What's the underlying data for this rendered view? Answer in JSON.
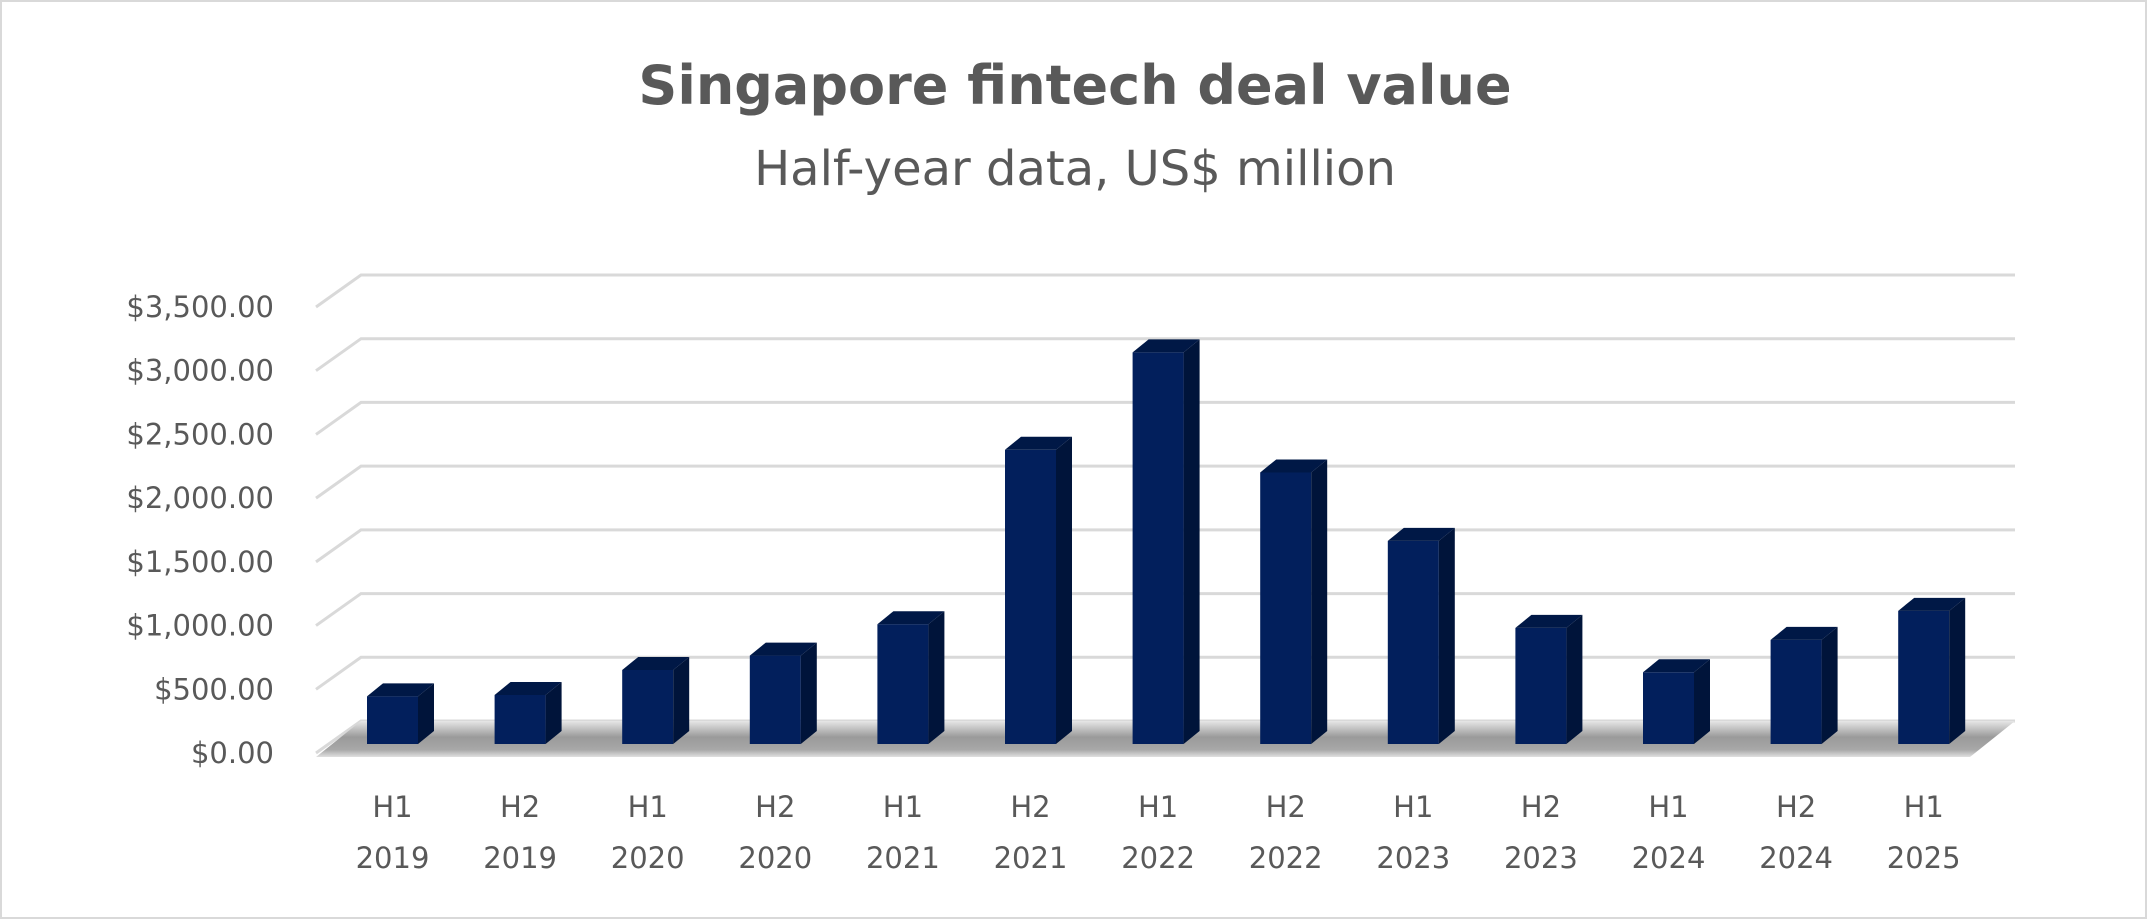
{
  "chart_data": {
    "type": "bar",
    "title": "Singapore fintech deal value",
    "subtitle": "Half-year data, US$ million",
    "categories": [
      [
        "H1",
        "2019"
      ],
      [
        "H2",
        "2019"
      ],
      [
        "H1",
        "2020"
      ],
      [
        "H2",
        "2020"
      ],
      [
        "H1",
        "2021"
      ],
      [
        "H2",
        "2021"
      ],
      [
        "H1",
        "2022"
      ],
      [
        "H2",
        "2022"
      ],
      [
        "H1",
        "2023"
      ],
      [
        "H2",
        "2023"
      ],
      [
        "H1",
        "2024"
      ],
      [
        "H2",
        "2024"
      ],
      [
        "H1",
        "2025"
      ]
    ],
    "values": [
      374,
      385,
      581,
      694,
      940,
      2309,
      3073,
      2131,
      1594,
      911,
      563,
      817,
      1045
    ],
    "ylim": [
      0,
      3500
    ],
    "yticks": [
      "$0.00",
      "$500.00",
      "$1,000.00",
      "$1,500.00",
      "$2,000.00",
      "$2,500.00",
      "$3,000.00",
      "$3,500.00"
    ],
    "grid": true,
    "style": "3d-column",
    "colors": {
      "bar_front": "#021f5c",
      "bar_side": "#00143a",
      "bar_top": "#001846",
      "grid": "#d9d9d9",
      "text": "#595959"
    }
  }
}
